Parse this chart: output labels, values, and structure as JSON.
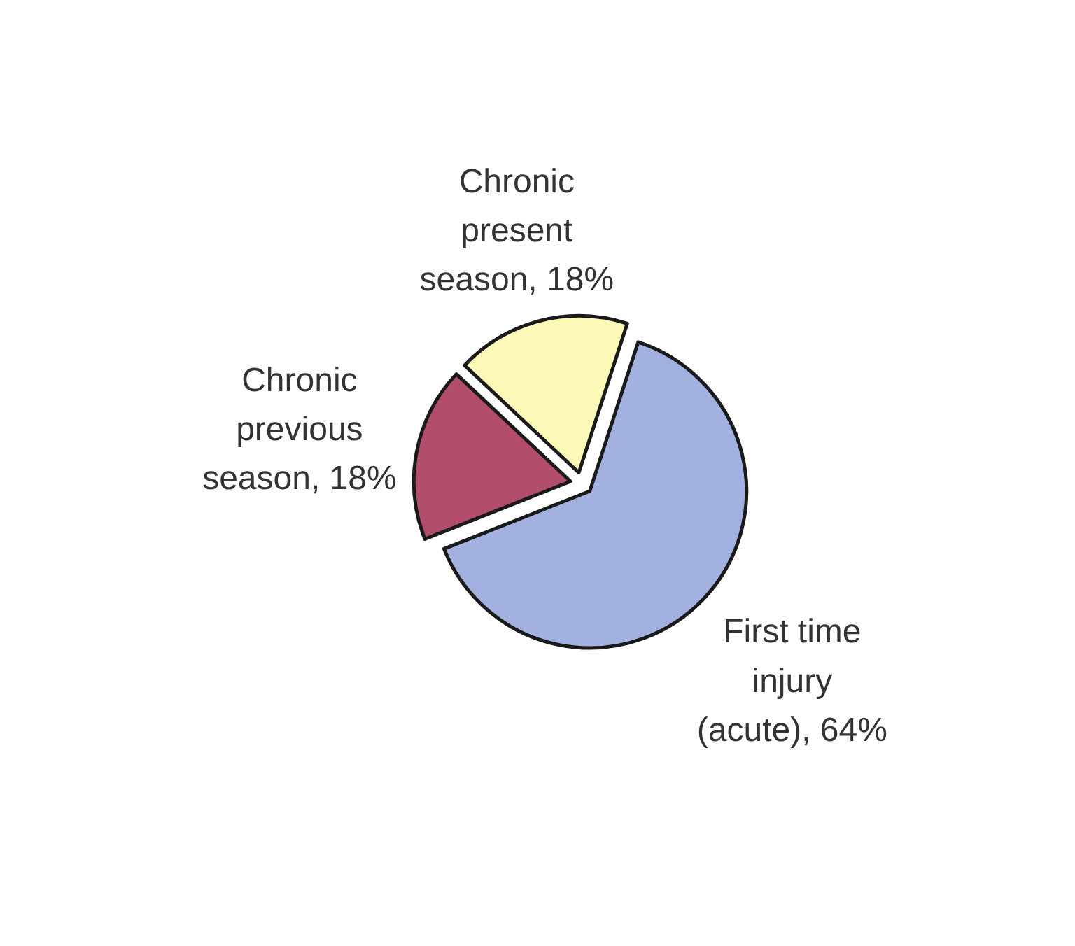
{
  "chart_data": {
    "type": "pie",
    "categories": [
      "First time injury (acute)",
      "Chronic previous season",
      "Chronic present season"
    ],
    "values": [
      64,
      18,
      18
    ],
    "value_labels": [
      "64%",
      "18%",
      "18%"
    ],
    "colors": [
      "#a2b1e0",
      "#b24e6c",
      "#fbf8b8"
    ]
  }
}
